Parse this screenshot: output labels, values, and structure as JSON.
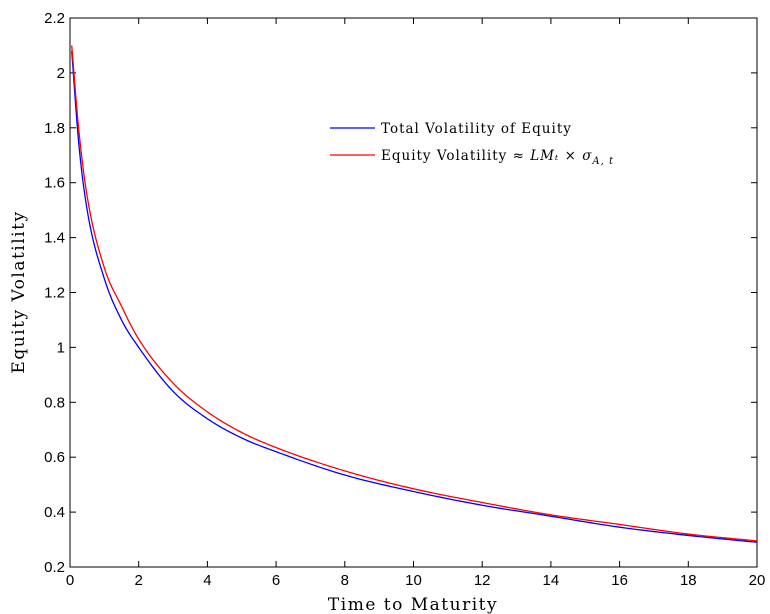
{
  "chart_data": {
    "type": "line",
    "xlabel": "Time to Maturity",
    "ylabel": "Equity Volatility",
    "xlim": [
      0,
      20
    ],
    "ylim": [
      0.2,
      2.2
    ],
    "xticks": [
      "0",
      "2",
      "4",
      "6",
      "8",
      "10",
      "12",
      "14",
      "16",
      "18",
      "20"
    ],
    "yticks": [
      "0.2",
      "0.4",
      "0.6",
      "0.8",
      "1",
      "1.2",
      "1.4",
      "1.6",
      "1.8",
      "2",
      "2.2"
    ],
    "grid": false,
    "legend_position": "upper-right",
    "series": [
      {
        "name": "Total Volatility of Equity",
        "color": "#0000ff",
        "x": [
          0.05,
          0.25,
          0.5,
          1,
          1.5,
          2,
          3,
          4,
          5,
          6,
          8,
          10,
          12,
          14,
          16,
          18,
          20
        ],
        "y": [
          2.08,
          1.75,
          1.5,
          1.25,
          1.1,
          1.0,
          0.84,
          0.74,
          0.67,
          0.62,
          0.535,
          0.475,
          0.425,
          0.385,
          0.345,
          0.315,
          0.29
        ]
      },
      {
        "name_prefix": "Equity Volatility ≈ ",
        "name_math": "LMₜ × σ",
        "name_sub": "A, t",
        "color": "#ff0000",
        "x": [
          0.05,
          0.25,
          0.5,
          1,
          1.5,
          2,
          3,
          4,
          5,
          6,
          8,
          10,
          12,
          14,
          16,
          18,
          20
        ],
        "y": [
          2.1,
          1.8,
          1.55,
          1.29,
          1.15,
          1.03,
          0.87,
          0.765,
          0.69,
          0.635,
          0.55,
          0.485,
          0.435,
          0.39,
          0.355,
          0.32,
          0.295
        ]
      }
    ]
  }
}
